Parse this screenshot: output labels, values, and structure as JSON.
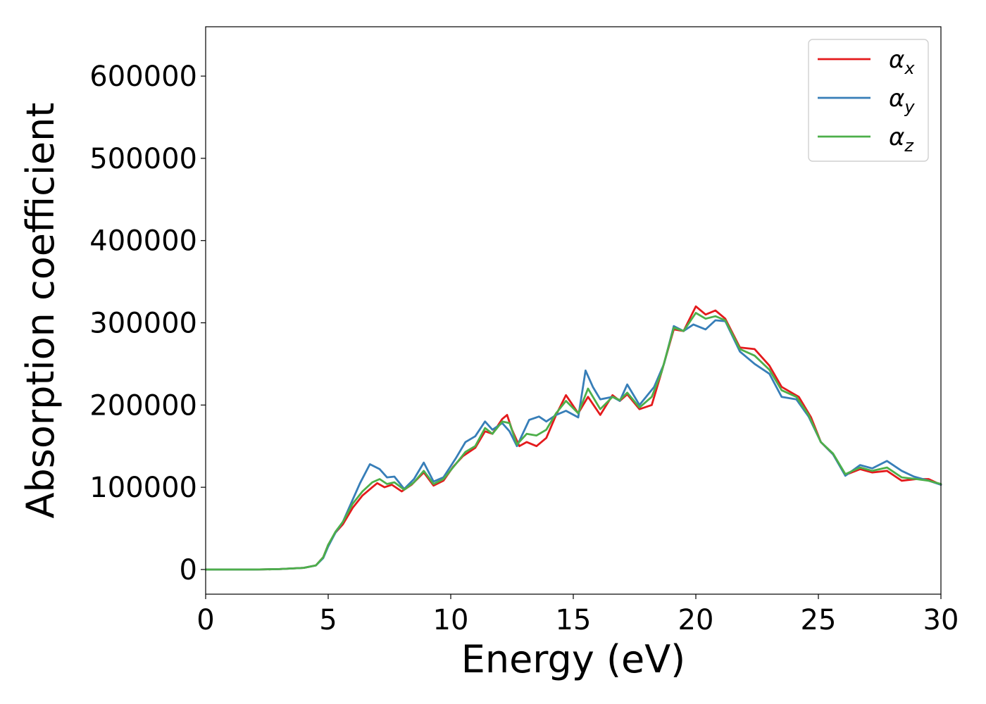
{
  "chart_data": {
    "type": "line",
    "title": "",
    "xlabel": "Energy (eV)",
    "ylabel": "Absorption coefficient",
    "xlim": [
      0,
      30
    ],
    "ylim": [
      -30000,
      660000
    ],
    "xticks": [
      0,
      5,
      10,
      15,
      20,
      25,
      30
    ],
    "xtick_labels": [
      "0",
      "5",
      "10",
      "15",
      "20",
      "25",
      "30"
    ],
    "yticks": [
      0,
      100000,
      200000,
      300000,
      400000,
      500000,
      600000
    ],
    "ytick_labels": [
      "0",
      "100000",
      "200000",
      "300000",
      "400000",
      "500000",
      "600000"
    ],
    "grid": false,
    "legend_position": "top-right",
    "series": [
      {
        "name": "α",
        "name_sub": "x",
        "color": "#e41a1c",
        "points": [
          [
            0,
            0
          ],
          [
            2,
            0
          ],
          [
            3,
            500
          ],
          [
            4,
            2000
          ],
          [
            4.5,
            5000
          ],
          [
            4.8,
            15000
          ],
          [
            5.0,
            30000
          ],
          [
            5.3,
            45000
          ],
          [
            5.6,
            55000
          ],
          [
            6.0,
            75000
          ],
          [
            6.4,
            90000
          ],
          [
            6.8,
            100000
          ],
          [
            7.0,
            105000
          ],
          [
            7.3,
            100000
          ],
          [
            7.6,
            103000
          ],
          [
            8.0,
            95000
          ],
          [
            8.4,
            103000
          ],
          [
            8.9,
            118000
          ],
          [
            9.3,
            102000
          ],
          [
            9.7,
            108000
          ],
          [
            10.1,
            125000
          ],
          [
            10.5,
            138000
          ],
          [
            11.0,
            148000
          ],
          [
            11.4,
            168000
          ],
          [
            11.7,
            165000
          ],
          [
            12.1,
            183000
          ],
          [
            12.3,
            188000
          ],
          [
            12.5,
            170000
          ],
          [
            12.8,
            150000
          ],
          [
            13.1,
            155000
          ],
          [
            13.5,
            150000
          ],
          [
            13.9,
            160000
          ],
          [
            14.3,
            188000
          ],
          [
            14.7,
            212000
          ],
          [
            15.2,
            190000
          ],
          [
            15.6,
            210000
          ],
          [
            16.1,
            188000
          ],
          [
            16.6,
            212000
          ],
          [
            16.9,
            205000
          ],
          [
            17.2,
            213000
          ],
          [
            17.7,
            195000
          ],
          [
            18.2,
            200000
          ],
          [
            18.6,
            240000
          ],
          [
            19.1,
            292000
          ],
          [
            19.5,
            290000
          ],
          [
            20.0,
            320000
          ],
          [
            20.4,
            310000
          ],
          [
            20.8,
            315000
          ],
          [
            21.2,
            305000
          ],
          [
            21.8,
            270000
          ],
          [
            22.4,
            268000
          ],
          [
            23.0,
            248000
          ],
          [
            23.5,
            222000
          ],
          [
            24.2,
            210000
          ],
          [
            24.7,
            185000
          ],
          [
            25.1,
            155000
          ],
          [
            25.6,
            140000
          ],
          [
            26.1,
            115000
          ],
          [
            26.7,
            122000
          ],
          [
            27.2,
            118000
          ],
          [
            27.8,
            120000
          ],
          [
            28.4,
            108000
          ],
          [
            29.0,
            110000
          ],
          [
            29.5,
            110000
          ],
          [
            30.0,
            103000
          ]
        ]
      },
      {
        "name": "α",
        "name_sub": "y",
        "color": "#377eb8",
        "points": [
          [
            0,
            0
          ],
          [
            2,
            0
          ],
          [
            3,
            500
          ],
          [
            4,
            2000
          ],
          [
            4.5,
            5000
          ],
          [
            4.8,
            14000
          ],
          [
            5.0,
            28000
          ],
          [
            5.3,
            45000
          ],
          [
            5.6,
            58000
          ],
          [
            6.0,
            85000
          ],
          [
            6.3,
            105000
          ],
          [
            6.7,
            128000
          ],
          [
            7.1,
            122000
          ],
          [
            7.4,
            112000
          ],
          [
            7.7,
            113000
          ],
          [
            8.1,
            98000
          ],
          [
            8.5,
            110000
          ],
          [
            8.9,
            130000
          ],
          [
            9.3,
            107000
          ],
          [
            9.7,
            112000
          ],
          [
            10.2,
            135000
          ],
          [
            10.6,
            155000
          ],
          [
            11.0,
            162000
          ],
          [
            11.4,
            180000
          ],
          [
            11.7,
            170000
          ],
          [
            12.1,
            178000
          ],
          [
            12.4,
            168000
          ],
          [
            12.7,
            150000
          ],
          [
            13.2,
            182000
          ],
          [
            13.6,
            186000
          ],
          [
            13.9,
            180000
          ],
          [
            14.3,
            188000
          ],
          [
            14.7,
            193000
          ],
          [
            15.2,
            185000
          ],
          [
            15.5,
            242000
          ],
          [
            15.8,
            222000
          ],
          [
            16.1,
            207000
          ],
          [
            16.6,
            210000
          ],
          [
            16.9,
            205000
          ],
          [
            17.2,
            225000
          ],
          [
            17.7,
            200000
          ],
          [
            18.3,
            222000
          ],
          [
            18.7,
            250000
          ],
          [
            19.1,
            296000
          ],
          [
            19.5,
            290000
          ],
          [
            19.9,
            298000
          ],
          [
            20.4,
            292000
          ],
          [
            20.8,
            303000
          ],
          [
            21.2,
            302000
          ],
          [
            21.8,
            265000
          ],
          [
            22.4,
            250000
          ],
          [
            23.0,
            238000
          ],
          [
            23.5,
            210000
          ],
          [
            24.1,
            207000
          ],
          [
            24.6,
            186000
          ],
          [
            25.1,
            155000
          ],
          [
            25.6,
            140000
          ],
          [
            26.1,
            114000
          ],
          [
            26.7,
            127000
          ],
          [
            27.2,
            123000
          ],
          [
            27.8,
            132000
          ],
          [
            28.4,
            120000
          ],
          [
            28.9,
            113000
          ],
          [
            29.5,
            108000
          ],
          [
            30.0,
            103000
          ]
        ]
      },
      {
        "name": "α",
        "name_sub": "z",
        "color": "#4daf4a",
        "points": [
          [
            0,
            0
          ],
          [
            2,
            0
          ],
          [
            3,
            500
          ],
          [
            4,
            2000
          ],
          [
            4.5,
            5000
          ],
          [
            4.8,
            15000
          ],
          [
            5.0,
            30000
          ],
          [
            5.3,
            46000
          ],
          [
            5.6,
            58000
          ],
          [
            6.0,
            80000
          ],
          [
            6.4,
            95000
          ],
          [
            6.8,
            106000
          ],
          [
            7.1,
            110000
          ],
          [
            7.4,
            104000
          ],
          [
            7.7,
            106000
          ],
          [
            8.1,
            97000
          ],
          [
            8.5,
            106000
          ],
          [
            8.9,
            120000
          ],
          [
            9.3,
            104000
          ],
          [
            9.7,
            110000
          ],
          [
            10.2,
            128000
          ],
          [
            10.6,
            143000
          ],
          [
            11.0,
            150000
          ],
          [
            11.4,
            172000
          ],
          [
            11.7,
            165000
          ],
          [
            12.1,
            180000
          ],
          [
            12.4,
            178000
          ],
          [
            12.7,
            152000
          ],
          [
            13.1,
            165000
          ],
          [
            13.5,
            163000
          ],
          [
            13.9,
            170000
          ],
          [
            14.3,
            190000
          ],
          [
            14.7,
            205000
          ],
          [
            15.2,
            190000
          ],
          [
            15.6,
            220000
          ],
          [
            16.1,
            195000
          ],
          [
            16.6,
            210000
          ],
          [
            16.9,
            206000
          ],
          [
            17.2,
            215000
          ],
          [
            17.7,
            197000
          ],
          [
            18.2,
            210000
          ],
          [
            18.6,
            240000
          ],
          [
            19.1,
            294000
          ],
          [
            19.5,
            290000
          ],
          [
            20.0,
            312000
          ],
          [
            20.4,
            305000
          ],
          [
            20.8,
            308000
          ],
          [
            21.2,
            303000
          ],
          [
            21.8,
            268000
          ],
          [
            22.4,
            260000
          ],
          [
            23.0,
            243000
          ],
          [
            23.5,
            218000
          ],
          [
            24.1,
            210000
          ],
          [
            24.6,
            188000
          ],
          [
            25.1,
            155000
          ],
          [
            25.6,
            141000
          ],
          [
            26.1,
            116000
          ],
          [
            26.7,
            124000
          ],
          [
            27.2,
            120000
          ],
          [
            27.8,
            124000
          ],
          [
            28.4,
            112000
          ],
          [
            29.0,
            110000
          ],
          [
            29.5,
            108000
          ],
          [
            30.0,
            104000
          ]
        ]
      }
    ]
  }
}
